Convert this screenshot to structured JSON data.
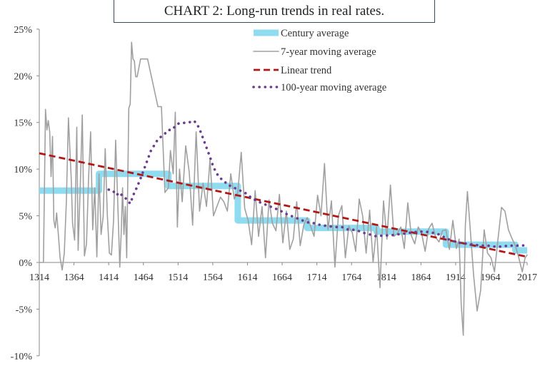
{
  "chart_data": {
    "type": "line",
    "title": "CHART 2: Long-run trends in real rates.",
    "xlabel": "",
    "ylabel": "",
    "x_ticks": [
      "1314",
      "1364",
      "1414",
      "1464",
      "1514",
      "1564",
      "1614",
      "1664",
      "1714",
      "1764",
      "1814",
      "1864",
      "1914",
      "1964",
      "2017"
    ],
    "y_ticks": [
      "25%",
      "20%",
      "15%",
      "10%",
      "5%",
      "0%",
      "-5%",
      "-10%"
    ],
    "xlim": [
      1314,
      2017
    ],
    "ylim": [
      -10,
      25
    ],
    "grid": false,
    "legend_position": "top-right",
    "series": [
      {
        "name": "Century average",
        "style": "thick-band",
        "color": "#8fdcf0",
        "x": [
          1314,
          1400,
          1400,
          1500,
          1500,
          1600,
          1600,
          1700,
          1700,
          1800,
          1800,
          1900,
          1900,
          2000,
          2000,
          2017
        ],
        "y": [
          7.7,
          7.7,
          9.5,
          9.5,
          8.2,
          8.2,
          4.5,
          4.5,
          3.7,
          3.7,
          3.3,
          3.3,
          1.9,
          1.9,
          1.3,
          1.3
        ]
      },
      {
        "name": "7-year moving average",
        "style": "thin-line",
        "color": "#a0a0a0",
        "x": [
          1314,
          1320,
          1323,
          1325,
          1327,
          1329,
          1331,
          1333,
          1335,
          1337,
          1339,
          1342,
          1344,
          1347,
          1350,
          1353,
          1356,
          1360,
          1362,
          1365,
          1368,
          1370,
          1373,
          1376,
          1379,
          1382,
          1385,
          1388,
          1391,
          1394,
          1397,
          1400,
          1403,
          1406,
          1409,
          1412,
          1415,
          1418,
          1421,
          1424,
          1427,
          1430,
          1432,
          1434,
          1436,
          1438,
          1440,
          1443,
          1445,
          1447,
          1449,
          1451,
          1453,
          1455,
          1460,
          1462,
          1464,
          1470,
          1485,
          1490,
          1495,
          1500,
          1503,
          1507,
          1510,
          1513,
          1516,
          1520,
          1525,
          1530,
          1535,
          1540,
          1545,
          1550,
          1555,
          1560,
          1565,
          1570,
          1575,
          1580,
          1585,
          1590,
          1595,
          1600,
          1605,
          1610,
          1615,
          1620,
          1625,
          1630,
          1635,
          1640,
          1645,
          1650,
          1655,
          1660,
          1665,
          1670,
          1675,
          1680,
          1685,
          1690,
          1695,
          1700,
          1705,
          1710,
          1715,
          1720,
          1725,
          1730,
          1735,
          1740,
          1745,
          1750,
          1755,
          1760,
          1765,
          1770,
          1775,
          1780,
          1785,
          1790,
          1795,
          1800,
          1805,
          1810,
          1815,
          1820,
          1825,
          1830,
          1835,
          1840,
          1845,
          1850,
          1855,
          1860,
          1865,
          1870,
          1875,
          1880,
          1885,
          1890,
          1895,
          1900,
          1905,
          1910,
          1915,
          1919,
          1922,
          1925,
          1928,
          1931,
          1935,
          1940,
          1945,
          1950,
          1955,
          1960,
          1965,
          1970,
          1975,
          1980,
          1985,
          1990,
          1995,
          2000,
          2005,
          2010,
          2014,
          2017
        ],
        "y": [
          0.0,
          0.0,
          16.4,
          14.2,
          15.2,
          14.0,
          9.2,
          13.5,
          4.5,
          3.7,
          5.3,
          2.5,
          0.5,
          -0.8,
          1.0,
          6.5,
          15.5,
          9.0,
          4.2,
          2.4,
          14.5,
          1.3,
          8.0,
          15.8,
          0.7,
          2.0,
          9.0,
          14.0,
          3.5,
          8.0,
          0.6,
          9.5,
          3.0,
          4.9,
          12.2,
          5.2,
          1.0,
          0.8,
          4.5,
          13.1,
          6.6,
          -0.5,
          3.0,
          8.0,
          3.0,
          6.0,
          0.5,
          16.5,
          17.0,
          23.6,
          21.8,
          21.6,
          19.9,
          19.9,
          21.8,
          21.8,
          21.8,
          21.8,
          16.7,
          16.7,
          7.5,
          8.0,
          12.0,
          9.5,
          16.1,
          3.8,
          10.0,
          6.5,
          12.5,
          9.7,
          4.0,
          14.0,
          5.5,
          8.5,
          6.0,
          11.0,
          5.0,
          6.0,
          7.0,
          6.5,
          5.5,
          9.5,
          6.8,
          7.5,
          11.8,
          5.8,
          4.5,
          1.9,
          7.7,
          2.8,
          6.0,
          0.5,
          6.7,
          4.2,
          3.4,
          7.3,
          2.1,
          5.5,
          1.4,
          2.5,
          6.5,
          1.8,
          4.0,
          4.8,
          3.9,
          2.8,
          7.2,
          5.0,
          10.6,
          3.5,
          6.6,
          -0.5,
          5.0,
          6.1,
          0.5,
          3.9,
          3.2,
          1.2,
          6.8,
          5.0,
          1.0,
          5.6,
          0.0,
          3.8,
          -2.7,
          6.6,
          2.5,
          8.3,
          2.8,
          3.1,
          3.8,
          1.5,
          6.4,
          2.9,
          2.0,
          3.8,
          3.1,
          1.2,
          3.6,
          4.2,
          2.7,
          2.2,
          3.4,
          3.5,
          1.4,
          4.5,
          1.5,
          2.5,
          -4.5,
          -7.8,
          4.0,
          7.6,
          3.6,
          -1.5,
          -5.2,
          -3.0,
          3.5,
          1.0,
          0.5,
          -1.0,
          2.5,
          5.9,
          5.5,
          3.5,
          2.6,
          1.8,
          0.5,
          -1.0,
          0.5,
          0.8
        ]
      },
      {
        "name": "Linear trend",
        "style": "dashed",
        "color": "#b01818",
        "x": [
          1314,
          2017
        ],
        "y": [
          11.7,
          0.6
        ]
      },
      {
        "name": "100-year moving average",
        "style": "dotted",
        "color": "#6b3d8f",
        "x": [
          1414,
          1420,
          1425,
          1430,
          1435,
          1440,
          1445,
          1450,
          1455,
          1460,
          1465,
          1470,
          1475,
          1480,
          1485,
          1490,
          1495,
          1500,
          1505,
          1510,
          1515,
          1520,
          1525,
          1530,
          1535,
          1540,
          1545,
          1550,
          1555,
          1560,
          1565,
          1570,
          1575,
          1580,
          1585,
          1590,
          1595,
          1600,
          1610,
          1620,
          1630,
          1640,
          1650,
          1660,
          1670,
          1680,
          1690,
          1700,
          1710,
          1720,
          1730,
          1740,
          1750,
          1760,
          1770,
          1780,
          1790,
          1800,
          1810,
          1820,
          1830,
          1840,
          1850,
          1860,
          1870,
          1880,
          1890,
          1900,
          1910,
          1920,
          1930,
          1940,
          1950,
          1960,
          1970,
          1980,
          1990,
          2000,
          2010,
          2017
        ],
        "y": [
          7.8,
          7.7,
          7.2,
          7.5,
          7.0,
          6.8,
          6.3,
          7.3,
          8.1,
          9.0,
          10.0,
          11.0,
          12.0,
          12.6,
          13.2,
          13.5,
          13.8,
          14.2,
          14.2,
          14.6,
          14.9,
          14.9,
          15.0,
          15.0,
          15.2,
          15.0,
          14.3,
          13.3,
          12.3,
          11.3,
          10.2,
          9.5,
          9.0,
          8.8,
          8.3,
          8.2,
          8.0,
          7.8,
          7.5,
          6.9,
          6.5,
          6.2,
          5.9,
          5.6,
          5.2,
          4.9,
          4.6,
          4.3,
          4.2,
          4.0,
          3.9,
          3.8,
          3.8,
          3.5,
          3.5,
          3.2,
          3.0,
          2.8,
          2.9,
          2.9,
          3.0,
          3.1,
          3.2,
          3.3,
          3.3,
          3.2,
          3.0,
          2.6,
          2.3,
          2.1,
          2.0,
          1.9,
          1.8,
          1.8,
          1.7,
          1.7,
          1.8,
          1.8,
          1.8,
          1.9
        ]
      }
    ]
  }
}
